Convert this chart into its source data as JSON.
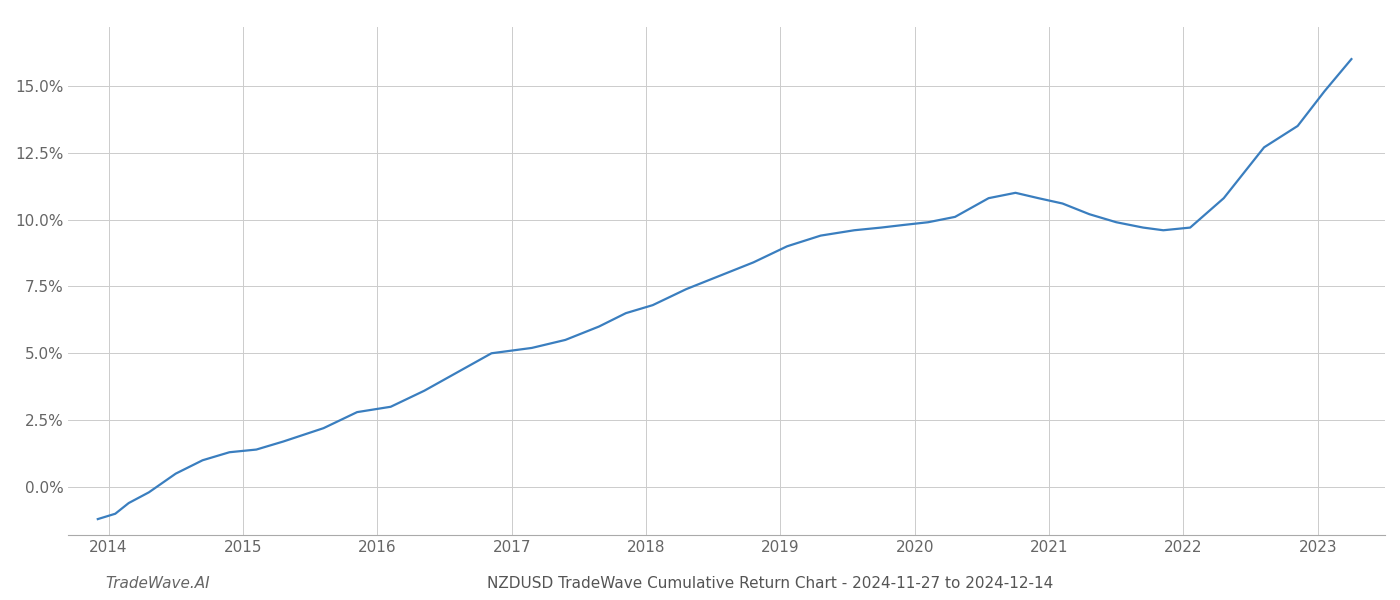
{
  "title": "NZDUSD TradeWave Cumulative Return Chart - 2024-11-27 to 2024-12-14",
  "watermark": "TradeWave.AI",
  "line_color": "#3a7ebf",
  "line_width": 1.6,
  "background_color": "#ffffff",
  "grid_color": "#cccccc",
  "x_values": [
    2013.92,
    2014.05,
    2014.15,
    2014.3,
    2014.5,
    2014.7,
    2014.9,
    2015.1,
    2015.3,
    2015.6,
    2015.85,
    2016.1,
    2016.35,
    2016.6,
    2016.85,
    2017.0,
    2017.15,
    2017.4,
    2017.65,
    2017.85,
    2018.05,
    2018.3,
    2018.55,
    2018.8,
    2019.05,
    2019.3,
    2019.55,
    2019.75,
    2019.92,
    2020.1,
    2020.3,
    2020.55,
    2020.75,
    2020.92,
    2021.1,
    2021.3,
    2021.5,
    2021.7,
    2021.85,
    2022.05,
    2022.3,
    2022.6,
    2022.85,
    2023.05,
    2023.25
  ],
  "y_values": [
    -0.012,
    -0.01,
    -0.006,
    -0.002,
    0.005,
    0.01,
    0.013,
    0.014,
    0.017,
    0.022,
    0.028,
    0.03,
    0.036,
    0.043,
    0.05,
    0.051,
    0.052,
    0.055,
    0.06,
    0.065,
    0.068,
    0.074,
    0.079,
    0.084,
    0.09,
    0.094,
    0.096,
    0.097,
    0.098,
    0.099,
    0.101,
    0.108,
    0.11,
    0.108,
    0.106,
    0.102,
    0.099,
    0.097,
    0.096,
    0.097,
    0.108,
    0.127,
    0.135,
    0.148,
    0.16
  ],
  "xlim": [
    2013.7,
    2023.5
  ],
  "ylim": [
    -0.018,
    0.172
  ],
  "yticks": [
    0.0,
    0.025,
    0.05,
    0.075,
    0.1,
    0.125,
    0.15
  ],
  "xticks": [
    2014,
    2015,
    2016,
    2017,
    2018,
    2019,
    2020,
    2021,
    2022,
    2023
  ],
  "title_fontsize": 11,
  "watermark_fontsize": 11,
  "tick_fontsize": 11
}
